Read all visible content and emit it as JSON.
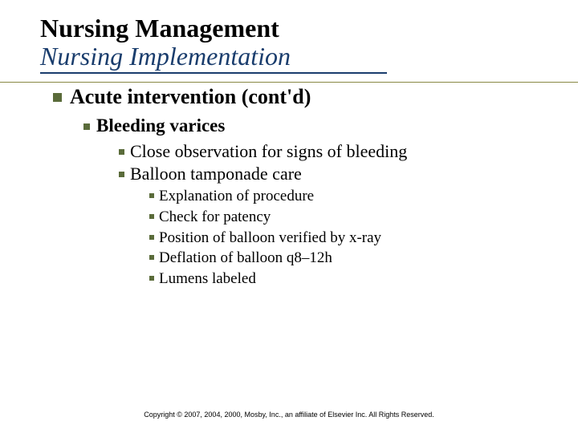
{
  "title": {
    "line1": "Nursing Management",
    "line2": "Nursing Implementation"
  },
  "colors": {
    "title_accent": "#1a3d6d",
    "bullet": "#5a6b3a",
    "rule": "#888844",
    "text": "#000000",
    "background": "#ffffff"
  },
  "typography": {
    "title_fontsize": 32,
    "lvl1_fontsize": 26,
    "lvl2_fontsize": 23,
    "lvl3_fontsize": 22,
    "lvl4_fontsize": 19,
    "footer_fontsize": 9
  },
  "content": {
    "lvl1": "Acute intervention (cont'd)",
    "lvl2": "Bleeding varices",
    "lvl3": [
      "Close observation for signs of bleeding",
      "Balloon tamponade care"
    ],
    "lvl4": [
      "Explanation of procedure",
      "Check for patency",
      "Position of balloon verified by x-ray",
      "Deflation of balloon q8–12h",
      "Lumens labeled"
    ]
  },
  "footer": "Copyright © 2007, 2004, 2000, Mosby, Inc., an affiliate of Elsevier Inc. All Rights Reserved."
}
